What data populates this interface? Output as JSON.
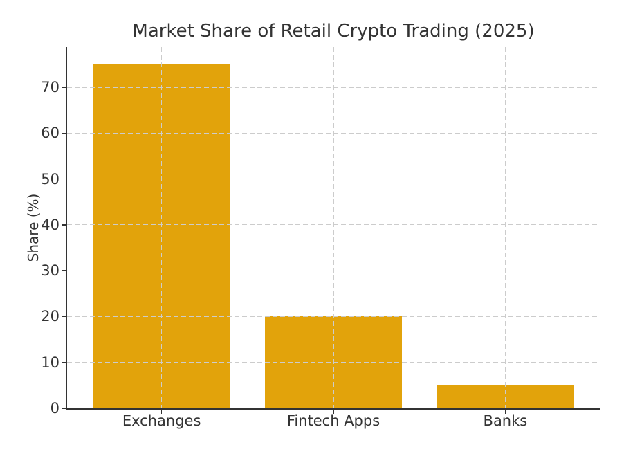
{
  "figure": {
    "background": "#ffffff"
  },
  "chart_data": {
    "type": "bar",
    "title": "Market Share of Retail Crypto Trading (2025)",
    "categories": [
      "Exchanges",
      "Fintech Apps",
      "Banks"
    ],
    "values": [
      75,
      20,
      5
    ],
    "xlabel": "",
    "ylabel": "Share (%)",
    "yticks": [
      0,
      10,
      20,
      30,
      40,
      50,
      60,
      70
    ],
    "ylim": [
      0,
      78.75
    ],
    "xlim": [
      -0.55,
      2.55
    ],
    "bar_width": 0.8,
    "bar_color": "#E2A30B",
    "grid": "both",
    "grid_style": "dashed",
    "grid_over_bars": true,
    "gridline_color": "#cccccc",
    "axis_color": "#333333",
    "text_color": "#333333",
    "spines": [
      "left",
      "bottom"
    ],
    "legend": "none"
  }
}
